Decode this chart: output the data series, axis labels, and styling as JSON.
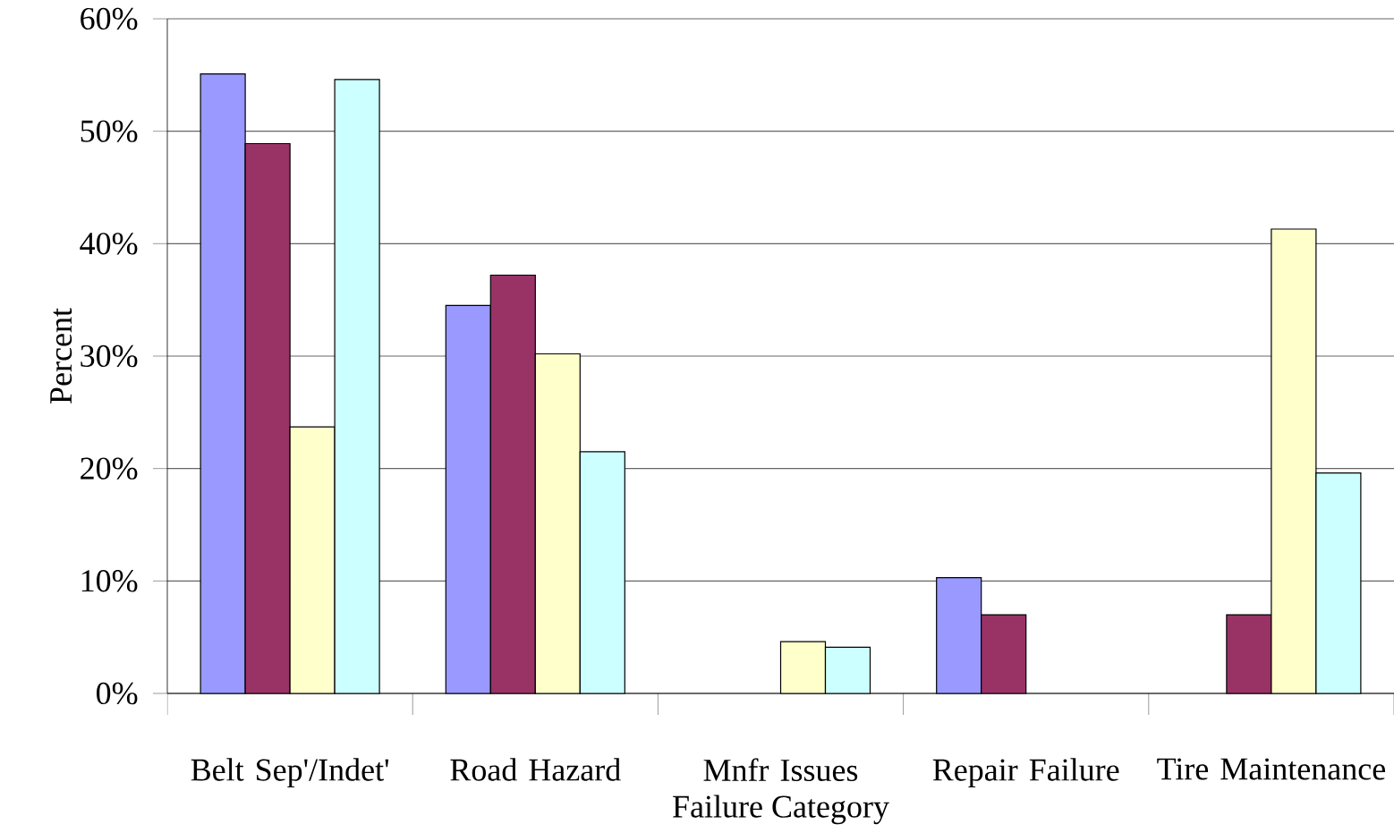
{
  "chart_data": {
    "type": "bar",
    "xlabel": "Failure Category",
    "ylabel": "Percent",
    "categories": [
      "Belt Sep'/Indet'",
      "Road Hazard",
      "Mnfr Issues",
      "Repair Failure",
      "Tire Maintenance"
    ],
    "series": [
      {
        "color": "#9999ff",
        "values": [
          55.1,
          34.5,
          null,
          10.3,
          null
        ]
      },
      {
        "color": "#993366",
        "values": [
          48.9,
          37.2,
          null,
          7.0,
          7.0
        ]
      },
      {
        "color": "#ffffcc",
        "values": [
          23.7,
          30.2,
          4.6,
          null,
          41.3
        ]
      },
      {
        "color": "#ccffff",
        "values": [
          54.6,
          21.5,
          4.1,
          null,
          19.6
        ]
      }
    ],
    "ylim": [
      0,
      60
    ],
    "yticks": [
      {
        "value": 0,
        "label": "0%"
      },
      {
        "value": 10,
        "label": "10%"
      },
      {
        "value": 20,
        "label": "20%"
      },
      {
        "value": 30,
        "label": "30%"
      },
      {
        "value": 40,
        "label": "40%"
      },
      {
        "value": 50,
        "label": "50%"
      },
      {
        "value": 60,
        "label": "60%"
      }
    ],
    "grid": "y"
  }
}
